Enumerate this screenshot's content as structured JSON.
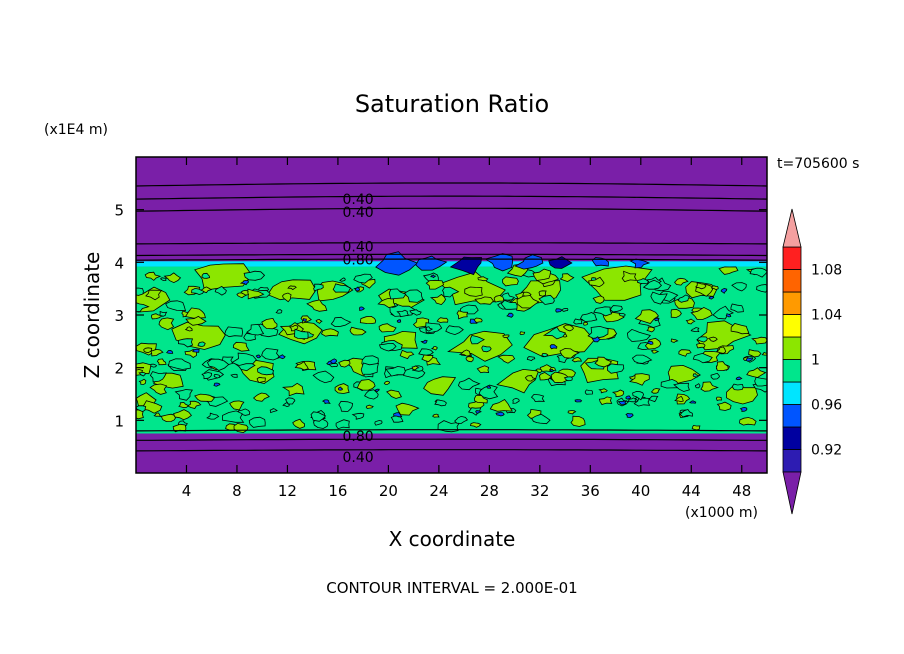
{
  "chart_data": {
    "type": "heatmap",
    "title": "Saturation Ratio",
    "xlabel": "X coordinate",
    "ylabel": "Z coordinate",
    "x_unit": "(x1000 m)",
    "y_unit": "(x1E4 m)",
    "time_label": "t=705600 s",
    "footer": "CONTOUR INTERVAL = 2.000E-01",
    "xlim": [
      0,
      50
    ],
    "ylim": [
      0,
      6
    ],
    "x_ticks": [
      4,
      8,
      12,
      16,
      20,
      24,
      28,
      32,
      36,
      40,
      44,
      48
    ],
    "y_ticks": [
      1,
      2,
      3,
      4,
      5
    ],
    "contour_labels": [
      {
        "text": "0.40",
        "x": 17.6,
        "y": 5.2
      },
      {
        "text": "0.40",
        "x": 17.6,
        "y": 4.96
      },
      {
        "text": "0.40",
        "x": 17.6,
        "y": 4.3
      },
      {
        "text": "0.80",
        "x": 17.6,
        "y": 4.05
      },
      {
        "text": "0.80",
        "x": 17.6,
        "y": 0.7
      },
      {
        "text": "0.40",
        "x": 17.6,
        "y": 0.3
      }
    ],
    "contour_lines_z": [
      0.42,
      0.62,
      0.8,
      4.04,
      4.13,
      4.35,
      4.97,
      5.2,
      5.45
    ],
    "colorbar": {
      "levels": [
        0.9,
        0.92,
        0.94,
        0.96,
        0.98,
        1.0,
        1.02,
        1.04,
        1.06,
        1.08,
        1.1
      ],
      "labels": [
        "0.92",
        "0.96",
        "1",
        "1.04",
        "1.08"
      ],
      "label_values": [
        0.92,
        0.96,
        1.0,
        1.04,
        1.08
      ],
      "colors": [
        "#2d1cb2",
        "#0000a0",
        "#0055ff",
        "#00e5ff",
        "#00e68c",
        "#8ce600",
        "#ffff00",
        "#ff9a00",
        "#ff6400",
        "#ff2020"
      ],
      "under_color": "#7a1fa8",
      "over_color": "#f4a0a0"
    },
    "field_colors": {
      "dry": "#7a1fa8",
      "moist": "#00e68c",
      "supersat": "#8ce600",
      "blue": "#00e5ff",
      "deep_blue": "#0055ff",
      "navy": "#0000a0"
    }
  }
}
